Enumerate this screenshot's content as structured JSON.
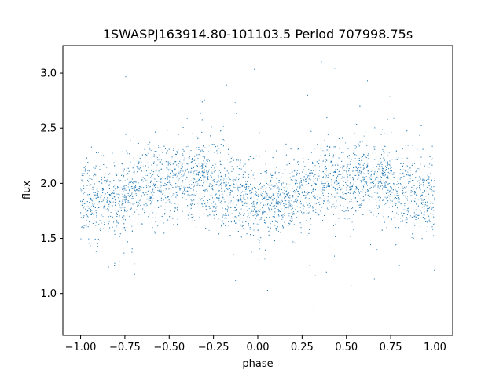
{
  "chart_data": {
    "type": "scatter",
    "title": "1SWASPJ163914.80-101103.5 Period 707998.75s",
    "xlabel": "phase",
    "ylabel": "flux",
    "xlim": [
      -1.1,
      1.1
    ],
    "ylim": [
      0.62,
      3.25
    ],
    "xticks": [
      -1.0,
      -0.75,
      -0.5,
      -0.25,
      0.0,
      0.25,
      0.5,
      0.75,
      1.0
    ],
    "xtick_labels": [
      "−1.00",
      "−0.75",
      "−0.50",
      "−0.25",
      "0.00",
      "0.25",
      "0.50",
      "0.75",
      "1.00"
    ],
    "yticks": [
      1.0,
      1.5,
      2.0,
      2.5,
      3.0
    ],
    "ytick_labels": [
      "1.0",
      "1.5",
      "2.0",
      "2.5",
      "3.0"
    ],
    "grid": false,
    "marker_color": "#1f77b4",
    "phase_range": [
      -1.0,
      1.0
    ],
    "flux_profile": [
      {
        "phase": -1.0,
        "flux": 1.83
      },
      {
        "phase": -0.9,
        "flux": 1.82
      },
      {
        "phase": -0.8,
        "flux": 1.86
      },
      {
        "phase": -0.7,
        "flux": 1.95
      },
      {
        "phase": -0.6,
        "flux": 2.03
      },
      {
        "phase": -0.5,
        "flux": 2.02
      },
      {
        "phase": -0.4,
        "flux": 2.05
      },
      {
        "phase": -0.3,
        "flux": 2.03
      },
      {
        "phase": -0.2,
        "flux": 1.95
      },
      {
        "phase": -0.1,
        "flux": 1.88
      },
      {
        "phase": 0.0,
        "flux": 1.83
      },
      {
        "phase": 0.1,
        "flux": 1.82
      },
      {
        "phase": 0.2,
        "flux": 1.86
      },
      {
        "phase": 0.3,
        "flux": 1.95
      },
      {
        "phase": 0.4,
        "flux": 2.03
      },
      {
        "phase": 0.5,
        "flux": 2.02
      },
      {
        "phase": 0.6,
        "flux": 2.05
      },
      {
        "phase": 0.7,
        "flux": 2.03
      },
      {
        "phase": 0.8,
        "flux": 1.95
      },
      {
        "phase": 0.9,
        "flux": 1.88
      },
      {
        "phase": 1.0,
        "flux": 1.83
      }
    ]
  }
}
